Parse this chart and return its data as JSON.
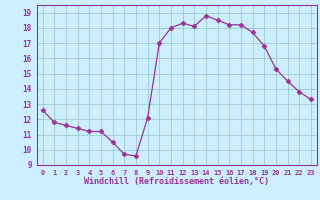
{
  "x": [
    0,
    1,
    2,
    3,
    4,
    5,
    6,
    7,
    8,
    9,
    10,
    11,
    12,
    13,
    14,
    15,
    16,
    17,
    18,
    19,
    20,
    21,
    22,
    23
  ],
  "y": [
    12.6,
    11.8,
    11.6,
    11.4,
    11.2,
    11.2,
    10.5,
    9.7,
    9.6,
    12.1,
    17.0,
    18.0,
    18.3,
    18.1,
    18.8,
    18.5,
    18.2,
    18.2,
    17.7,
    16.8,
    15.3,
    14.5,
    13.8,
    13.3
  ],
  "line_color": "#993399",
  "marker": "D",
  "marker_size": 2.5,
  "bg_color": "#cceeff",
  "grid_color": "#99cccc",
  "xlabel": "Windchill (Refroidissement éolien,°C)",
  "xlabel_color": "#993399",
  "tick_color": "#993399",
  "xlim": [
    -0.5,
    23.5
  ],
  "ylim": [
    9,
    19.5
  ],
  "yticks": [
    9,
    10,
    11,
    12,
    13,
    14,
    15,
    16,
    17,
    18,
    19
  ],
  "xticks": [
    0,
    1,
    2,
    3,
    4,
    5,
    6,
    7,
    8,
    9,
    10,
    11,
    12,
    13,
    14,
    15,
    16,
    17,
    18,
    19,
    20,
    21,
    22,
    23
  ]
}
